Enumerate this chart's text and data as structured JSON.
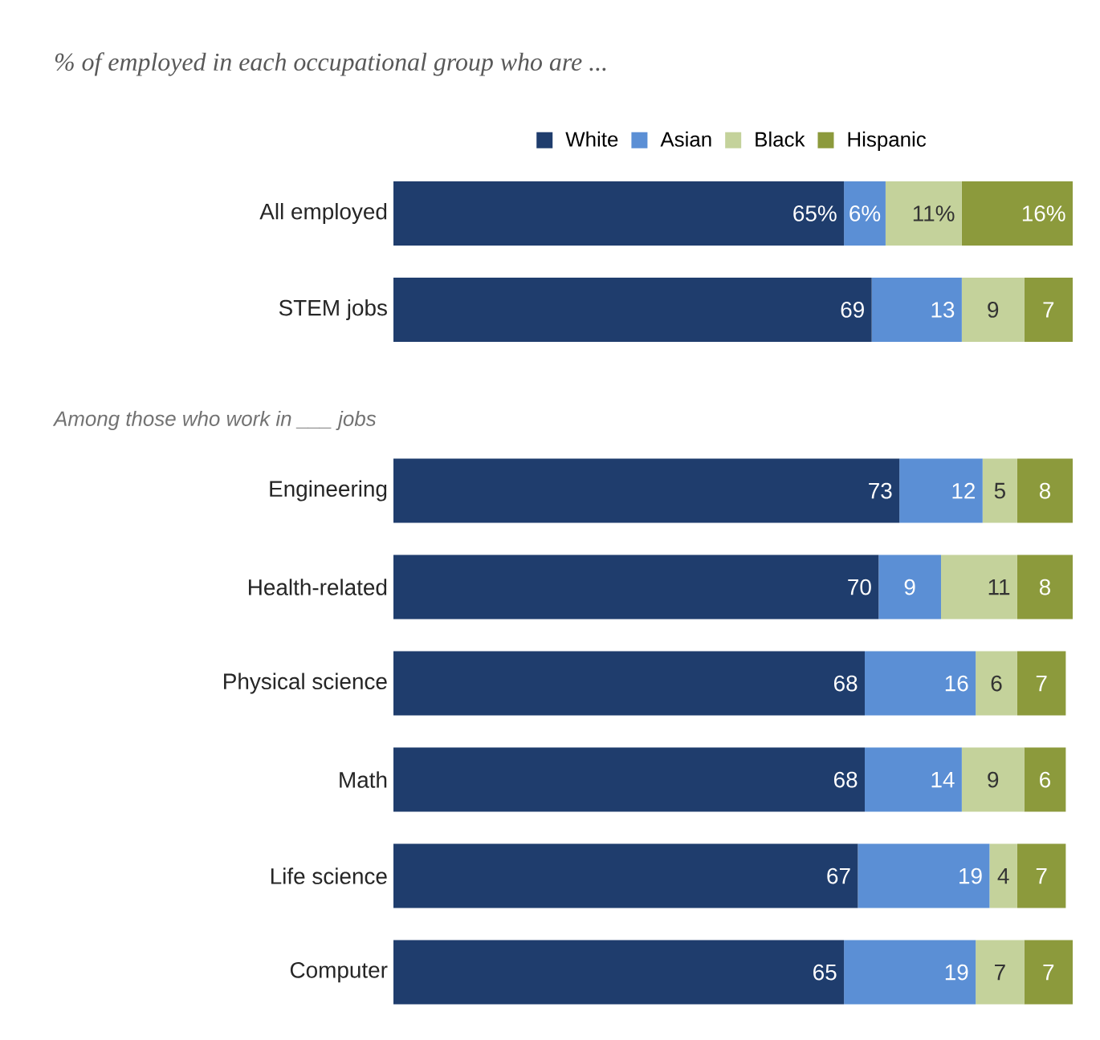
{
  "chart_data": {
    "type": "bar",
    "orientation": "horizontal",
    "stacked": true,
    "legend": "top",
    "title": "% of employed in each occupational group who are ...",
    "annotations": [
      "Among those who work in ___ jobs"
    ],
    "categories": [
      "All employed",
      "STEM jobs",
      "Engineering",
      "Health-related",
      "Physical science",
      "Math",
      "Life science",
      "Computer"
    ],
    "series": [
      {
        "name": "White",
        "color": "#1f3d6d",
        "values": [
          65,
          69,
          73,
          70,
          68,
          68,
          67,
          65
        ],
        "value_labels": [
          "65%",
          "69",
          "73",
          "70",
          "68",
          "68",
          "67",
          "65"
        ]
      },
      {
        "name": "Asian",
        "color": "#5b8fd5",
        "values": [
          6,
          13,
          12,
          9,
          16,
          14,
          19,
          19
        ],
        "value_labels": [
          "6%",
          "13",
          "12",
          "9",
          "16",
          "14",
          "19",
          "19"
        ]
      },
      {
        "name": "Black",
        "color": "#c4d29b",
        "values": [
          11,
          9,
          5,
          11,
          6,
          9,
          4,
          7
        ],
        "value_labels": [
          "11%",
          "9",
          "5",
          "11",
          "6",
          "9",
          "4",
          "7"
        ]
      },
      {
        "name": "Hispanic",
        "color": "#8c9a3c",
        "values": [
          16,
          7,
          8,
          8,
          7,
          6,
          7,
          7
        ],
        "value_labels": [
          "16%",
          "7",
          "8",
          "8",
          "7",
          "6",
          "7",
          "7"
        ]
      }
    ]
  }
}
